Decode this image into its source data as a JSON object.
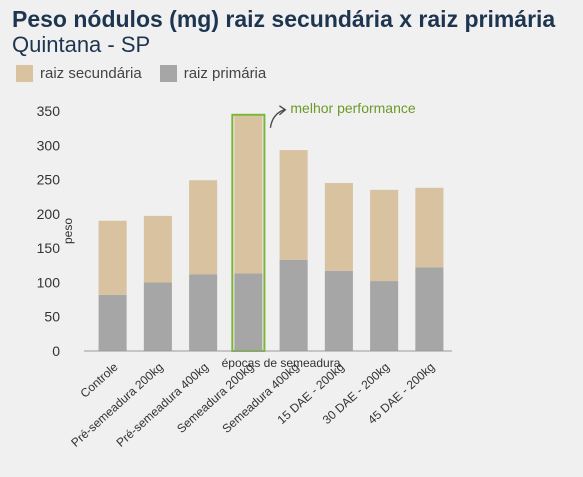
{
  "header": {
    "title": "Peso nódulos (mg) raiz secundária x raiz primária",
    "subtitle": "Quintana - SP"
  },
  "colors": {
    "secundaria": "#d8c29f",
    "primaria": "#a6a6a6",
    "highlight": "#7ab538",
    "annotation": "#6c9a2a",
    "axis": "#9a9a9a",
    "text": "#333333"
  },
  "chart_data": {
    "type": "bar",
    "stacked": true,
    "categories": [
      "Controle",
      "Pré-semeadura 200kg",
      "Pré-semeadura 400kg",
      "Semeadura 200kg",
      "Semeadura 400kg",
      "15 DAE - 200kg",
      "30 DAE - 200kg",
      "45 DAE - 200kg"
    ],
    "series": [
      {
        "name": "raiz primária",
        "values": [
          82,
          100,
          112,
          113,
          133,
          117,
          102,
          122
        ]
      },
      {
        "name": "raiz secundária",
        "values": [
          108,
          97,
          137,
          230,
          160,
          128,
          133,
          116
        ]
      }
    ],
    "legend_order": [
      "raiz secundária",
      "raiz primária"
    ],
    "legend_position": "top-left",
    "xlabel": "épocas de semeadura",
    "ylabel": "peso",
    "ylim": [
      0,
      350
    ],
    "yticks": [
      0,
      50,
      100,
      150,
      200,
      250,
      300,
      350
    ],
    "grid": false,
    "highlight_category": "Semeadura 200kg",
    "annotation": "melhor performance"
  }
}
